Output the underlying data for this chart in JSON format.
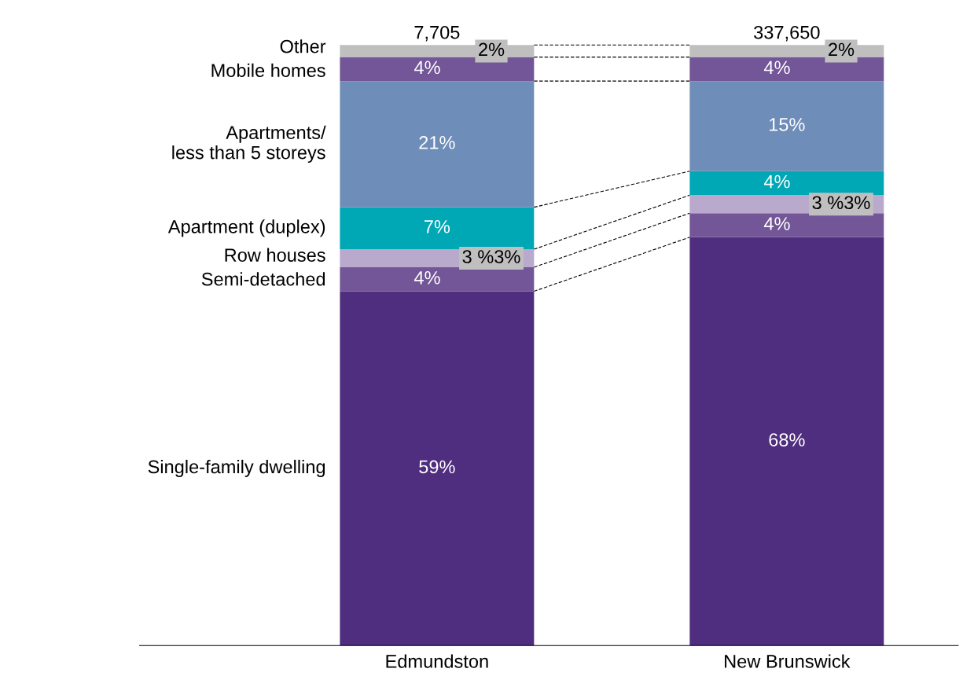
{
  "chart_data": {
    "type": "bar",
    "stacked": true,
    "categories": [
      "Edmundston",
      "New Brunswick"
    ],
    "series": [
      {
        "name": "Single-family dwelling",
        "color": "#4f2d7f",
        "values": [
          59,
          68
        ],
        "value_labels": [
          "59%",
          "68%"
        ]
      },
      {
        "name": "Semi-detached",
        "color": "#735697",
        "values": [
          4,
          4
        ],
        "value_labels": [
          "4%",
          "4%"
        ]
      },
      {
        "name": "Row houses",
        "color": "#b9a9cc",
        "values": [
          3,
          3
        ],
        "value_labels": [
          "3 %3%",
          "3 %3%"
        ]
      },
      {
        "name": "Apartment (duplex)",
        "color": "#00a7b5",
        "values": [
          7,
          4
        ],
        "value_labels": [
          "7%",
          "4%"
        ]
      },
      {
        "name": "Apartments/\nless than 5 storeys",
        "color": "#6f8db9",
        "values": [
          21,
          15
        ],
        "value_labels": [
          "21%",
          "15%"
        ]
      },
      {
        "name": "Mobile homes",
        "color": "#735697",
        "values": [
          4,
          4
        ],
        "value_labels": [
          "4%",
          "4%"
        ]
      },
      {
        "name": "Other",
        "color": "#bfbfbf",
        "values": [
          2,
          2
        ],
        "value_labels": [
          "2%",
          "2%"
        ]
      }
    ],
    "annotations": [
      {
        "text": "7,705",
        "x": "Edmundston",
        "y": 100
      },
      {
        "text": "337,650",
        "x": "New Brunswick",
        "y": 100
      }
    ],
    "legend": false,
    "grid": false
  }
}
